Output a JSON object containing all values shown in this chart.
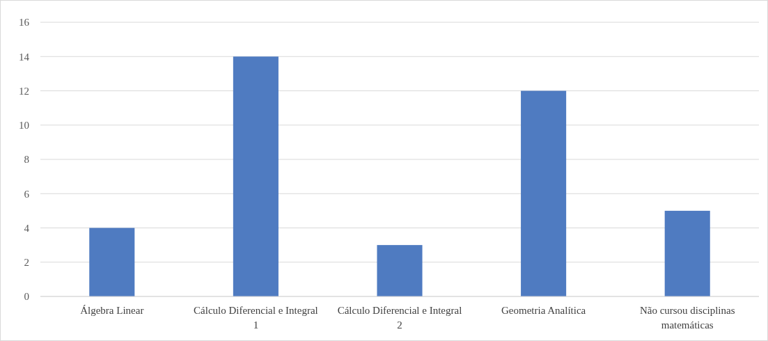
{
  "chart_data": {
    "type": "bar",
    "categories": [
      "Álgebra Linear",
      "Cálculo Diferencial e Integral 1",
      "Cálculo Diferencial e Integral 2",
      "Geometria Analítica",
      "Não cursou disciplinas matemáticas"
    ],
    "values": [
      4,
      14,
      3,
      12,
      5
    ],
    "color": "#4f7bc1",
    "ylim": [
      0,
      16
    ],
    "yticks": [
      0,
      2,
      4,
      6,
      8,
      10,
      12,
      14,
      16
    ],
    "grid": "y"
  }
}
